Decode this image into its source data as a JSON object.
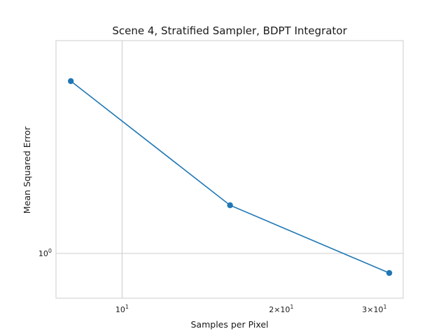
{
  "chart_data": {
    "type": "line",
    "title": "Scene 4, Stratified Sampler, BDPT Integrator",
    "xlabel": "Samples per Pixel",
    "ylabel": "Mean Squared Error",
    "xscale": "log",
    "yscale": "log",
    "xlim": [
      7.5,
      34
    ],
    "ylim": [
      0.9,
      1.65
    ],
    "grid": true,
    "series": [
      {
        "x": [
          8,
          16,
          32
        ],
        "y": [
          1.5,
          1.12,
          0.955
        ],
        "color": "#1f77b4"
      }
    ],
    "x_ticks": [
      {
        "value": 10,
        "base": "10",
        "exp": "1",
        "mult": ""
      },
      {
        "value": 20,
        "base": "10",
        "exp": "1",
        "mult": "2×"
      },
      {
        "value": 30,
        "base": "10",
        "exp": "1",
        "mult": "3×"
      }
    ],
    "y_ticks": [
      {
        "value": 1,
        "base": "10",
        "exp": "0"
      }
    ]
  }
}
